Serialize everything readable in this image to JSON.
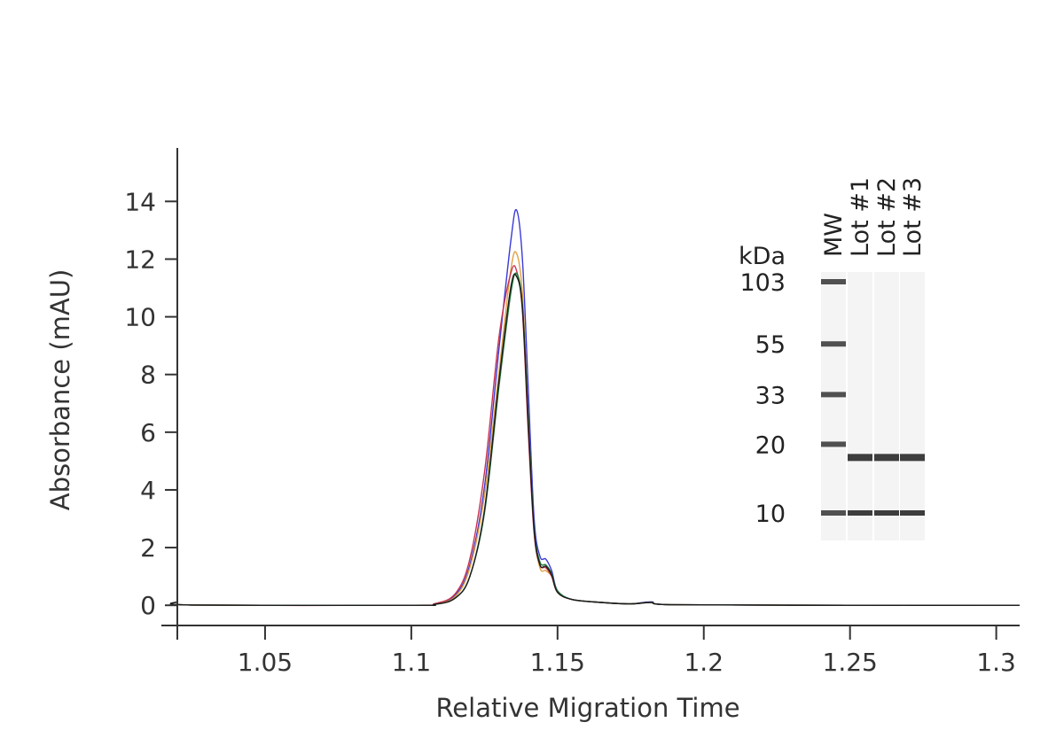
{
  "chart_data": {
    "type": "line",
    "title": "",
    "xlabel": "Relative Migration Time",
    "ylabel": "Absorbance (mAU)",
    "xlim": [
      1.02,
      1.308
    ],
    "ylim": [
      -0.7,
      15.3
    ],
    "xticks": [
      1.05,
      1.1,
      1.15,
      1.2,
      1.25,
      1.3
    ],
    "xtick_labels": [
      "1.05",
      "1.1",
      "1.15",
      "1.2",
      "1.25",
      "1.3"
    ],
    "yticks": [
      0,
      2,
      4,
      6,
      8,
      10,
      12,
      14
    ],
    "ytick_labels": [
      "0",
      "2",
      "4",
      "6",
      "8",
      "10",
      "12",
      "14"
    ],
    "grid": false,
    "legend": "none",
    "series": [
      {
        "color": "#3a3ad8",
        "points": [
          [
            1.02,
            0.12
          ],
          [
            1.025,
            0.01
          ],
          [
            1.1,
            0.0
          ],
          [
            1.108,
            0.05
          ],
          [
            1.115,
            0.35
          ],
          [
            1.12,
            1.4
          ],
          [
            1.125,
            4.1
          ],
          [
            1.13,
            8.9
          ],
          [
            1.134,
            12.6
          ],
          [
            1.136,
            13.7
          ],
          [
            1.138,
            12.0
          ],
          [
            1.14,
            7.5
          ],
          [
            1.142,
            3.0
          ],
          [
            1.144,
            1.7
          ],
          [
            1.146,
            1.6
          ],
          [
            1.148,
            1.2
          ],
          [
            1.15,
            0.5
          ],
          [
            1.155,
            0.2
          ],
          [
            1.165,
            0.1
          ],
          [
            1.175,
            0.05
          ],
          [
            1.182,
            0.12
          ],
          [
            1.19,
            0.02
          ],
          [
            1.25,
            0.0
          ],
          [
            1.308,
            0.0
          ]
        ]
      },
      {
        "color": "#e2a043",
        "points": [
          [
            1.02,
            0.12
          ],
          [
            1.025,
            0.01
          ],
          [
            1.1,
            0.0
          ],
          [
            1.108,
            0.05
          ],
          [
            1.115,
            0.3
          ],
          [
            1.12,
            1.3
          ],
          [
            1.125,
            3.8
          ],
          [
            1.13,
            8.1
          ],
          [
            1.134,
            11.6
          ],
          [
            1.136,
            12.2
          ],
          [
            1.138,
            10.8
          ],
          [
            1.14,
            6.6
          ],
          [
            1.142,
            2.6
          ],
          [
            1.144,
            1.3
          ],
          [
            1.146,
            1.2
          ],
          [
            1.148,
            1.0
          ],
          [
            1.15,
            0.45
          ],
          [
            1.155,
            0.2
          ],
          [
            1.165,
            0.1
          ],
          [
            1.175,
            0.05
          ],
          [
            1.182,
            0.1
          ],
          [
            1.19,
            0.02
          ],
          [
            1.25,
            0.0
          ],
          [
            1.308,
            0.0
          ]
        ]
      },
      {
        "color": "#c9324e",
        "points": [
          [
            1.02,
            0.12
          ],
          [
            1.025,
            0.01
          ],
          [
            1.1,
            0.0
          ],
          [
            1.108,
            0.06
          ],
          [
            1.115,
            0.4
          ],
          [
            1.12,
            1.6
          ],
          [
            1.125,
            4.6
          ],
          [
            1.13,
            9.3
          ],
          [
            1.134,
            11.5
          ],
          [
            1.136,
            11.6
          ],
          [
            1.138,
            10.2
          ],
          [
            1.14,
            6.0
          ],
          [
            1.142,
            2.5
          ],
          [
            1.144,
            1.4
          ],
          [
            1.146,
            1.3
          ],
          [
            1.148,
            1.0
          ],
          [
            1.15,
            0.45
          ],
          [
            1.155,
            0.2
          ],
          [
            1.165,
            0.1
          ],
          [
            1.175,
            0.05
          ],
          [
            1.182,
            0.1
          ],
          [
            1.19,
            0.02
          ],
          [
            1.25,
            0.0
          ],
          [
            1.308,
            0.0
          ]
        ]
      },
      {
        "color": "#1f7a3a",
        "points": [
          [
            1.02,
            0.12
          ],
          [
            1.025,
            0.01
          ],
          [
            1.1,
            0.0
          ],
          [
            1.108,
            0.03
          ],
          [
            1.115,
            0.25
          ],
          [
            1.12,
            1.0
          ],
          [
            1.125,
            3.2
          ],
          [
            1.13,
            7.6
          ],
          [
            1.134,
            10.8
          ],
          [
            1.136,
            11.5
          ],
          [
            1.138,
            10.4
          ],
          [
            1.14,
            6.5
          ],
          [
            1.142,
            2.7
          ],
          [
            1.144,
            1.5
          ],
          [
            1.146,
            1.4
          ],
          [
            1.148,
            1.1
          ],
          [
            1.15,
            0.5
          ],
          [
            1.155,
            0.2
          ],
          [
            1.165,
            0.1
          ],
          [
            1.175,
            0.05
          ],
          [
            1.182,
            0.1
          ],
          [
            1.19,
            0.02
          ],
          [
            1.25,
            0.0
          ],
          [
            1.308,
            0.0
          ]
        ]
      },
      {
        "color": "#1b1b1b",
        "points": [
          [
            1.02,
            0.12
          ],
          [
            1.025,
            0.01
          ],
          [
            1.1,
            0.0
          ],
          [
            1.108,
            0.03
          ],
          [
            1.115,
            0.25
          ],
          [
            1.12,
            1.0
          ],
          [
            1.125,
            3.3
          ],
          [
            1.13,
            7.8
          ],
          [
            1.134,
            11.0
          ],
          [
            1.136,
            11.4
          ],
          [
            1.138,
            10.3
          ],
          [
            1.14,
            6.3
          ],
          [
            1.142,
            2.6
          ],
          [
            1.144,
            1.4
          ],
          [
            1.146,
            1.35
          ],
          [
            1.148,
            1.05
          ],
          [
            1.15,
            0.45
          ],
          [
            1.155,
            0.2
          ],
          [
            1.165,
            0.1
          ],
          [
            1.175,
            0.05
          ],
          [
            1.182,
            0.1
          ],
          [
            1.19,
            0.02
          ],
          [
            1.25,
            0.0
          ],
          [
            1.308,
            0.0
          ]
        ]
      }
    ]
  },
  "gel_inset": {
    "unit_label": "kDa",
    "lane_labels": [
      "MW",
      "Lot #1",
      "Lot #2",
      "Lot #3"
    ],
    "ladder": [
      {
        "label": "103",
        "kda": 103
      },
      {
        "label": "55",
        "kda": 55
      },
      {
        "label": "33",
        "kda": 33
      },
      {
        "label": "20",
        "kda": 20
      },
      {
        "label": "10",
        "kda": 10
      }
    ],
    "sample_bands_kda": [
      17.5,
      10
    ],
    "lane_color": "#f4f4f4",
    "band_color": "#333333"
  }
}
